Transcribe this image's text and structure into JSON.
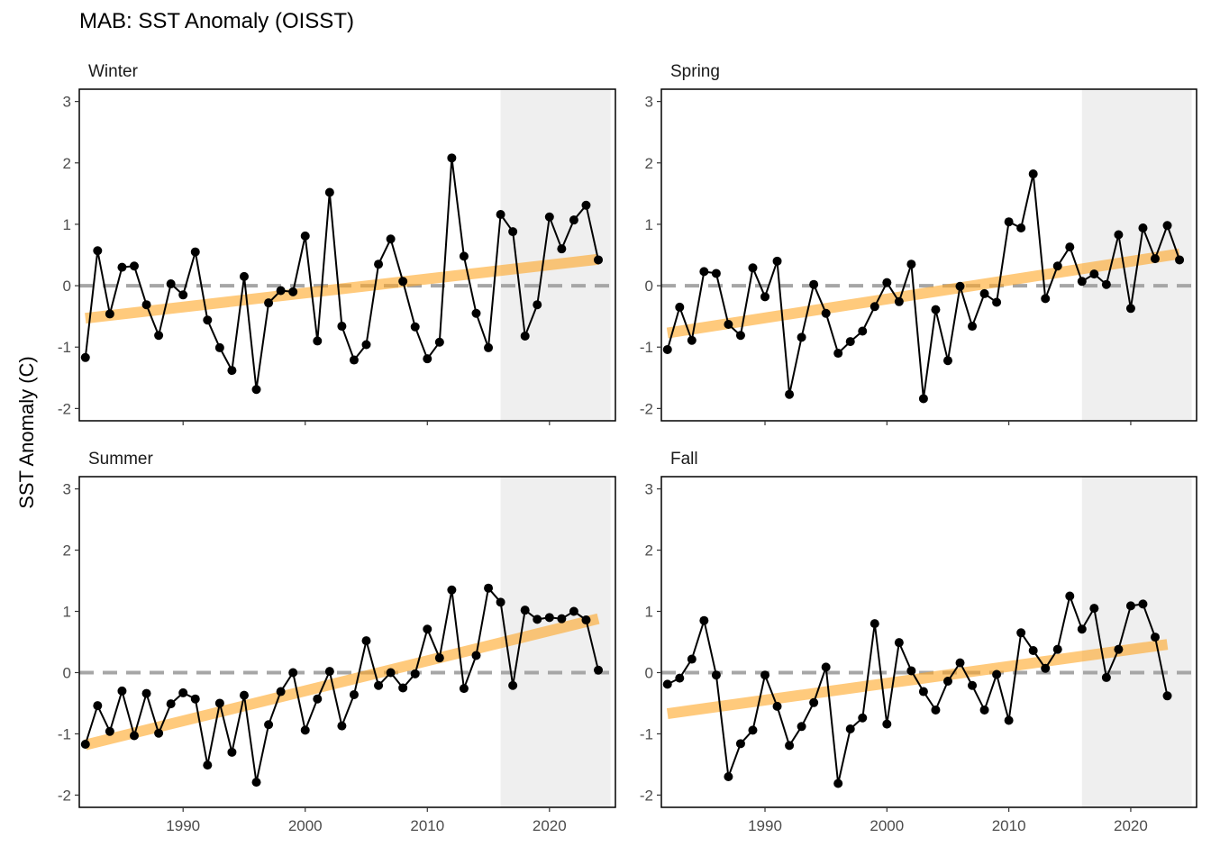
{
  "title": "MAB: SST Anomaly (OISST)",
  "ylabel": "SST Anomaly (C)",
  "colors": {
    "series": "#000000",
    "trend": "#FFA726",
    "zero_line": "#A6A6A6",
    "shade": "#EFEFEF",
    "panel_border": "#000000"
  },
  "chart_data": [
    {
      "type": "line",
      "facet": "Winter",
      "x": [
        1982,
        1983,
        1984,
        1985,
        1986,
        1987,
        1988,
        1989,
        1990,
        1991,
        1992,
        1993,
        1994,
        1995,
        1996,
        1997,
        1998,
        1999,
        2000,
        2001,
        2002,
        2003,
        2004,
        2005,
        2006,
        2007,
        2008,
        2009,
        2010,
        2011,
        2012,
        2013,
        2014,
        2015,
        2016,
        2017,
        2018,
        2019,
        2020,
        2021,
        2022,
        2023,
        2024
      ],
      "y": [
        -1.17,
        0.57,
        -0.46,
        0.3,
        0.32,
        -0.31,
        -0.81,
        0.03,
        -0.15,
        0.55,
        -0.56,
        -1.01,
        -1.38,
        0.15,
        -1.69,
        -0.28,
        -0.08,
        -0.1,
        0.81,
        -0.9,
        1.52,
        -0.66,
        -1.21,
        -0.96,
        0.35,
        0.76,
        0.07,
        -0.67,
        -1.19,
        -0.92,
        2.08,
        0.48,
        -0.45,
        -1.01,
        1.16,
        0.88,
        -0.82,
        -0.31,
        1.12,
        0.6,
        1.07,
        1.31,
        0.42
      ],
      "trend": {
        "x": [
          1982,
          2024
        ],
        "y": [
          -0.53,
          0.43
        ]
      },
      "shade": [
        2016,
        2025
      ],
      "xlim": [
        1981.5,
        2025.4
      ],
      "ylim": [
        -2.2,
        3.2
      ],
      "yticks": [
        -2,
        -1,
        0,
        1,
        2,
        3
      ],
      "xticks": [
        1990,
        2000,
        2010,
        2020
      ]
    },
    {
      "type": "line",
      "facet": "Spring",
      "x": [
        1982,
        1983,
        1984,
        1985,
        1986,
        1987,
        1988,
        1989,
        1990,
        1991,
        1992,
        1993,
        1994,
        1995,
        1996,
        1997,
        1998,
        1999,
        2000,
        2001,
        2002,
        2003,
        2004,
        2005,
        2006,
        2007,
        2008,
        2009,
        2010,
        2011,
        2012,
        2013,
        2014,
        2015,
        2016,
        2017,
        2018,
        2019,
        2020,
        2021,
        2022,
        2023,
        2024
      ],
      "y": [
        -1.04,
        -0.35,
        -0.89,
        0.23,
        0.2,
        -0.63,
        -0.81,
        0.29,
        -0.18,
        0.4,
        -1.77,
        -0.84,
        0.02,
        -0.45,
        -1.1,
        -0.91,
        -0.74,
        -0.34,
        0.05,
        -0.26,
        0.35,
        -1.84,
        -0.39,
        -1.22,
        -0.01,
        -0.66,
        -0.13,
        -0.27,
        1.04,
        0.94,
        1.82,
        -0.21,
        0.32,
        0.63,
        0.07,
        0.19,
        0.02,
        0.83,
        -0.37,
        0.94,
        0.44,
        0.98,
        0.42
      ],
      "trend": {
        "x": [
          1982,
          2024
        ],
        "y": [
          -0.77,
          0.52
        ]
      },
      "shade": [
        2016,
        2025
      ],
      "xlim": [
        1981.5,
        2025.4
      ],
      "ylim": [
        -2.2,
        3.2
      ],
      "yticks": [
        -2,
        -1,
        0,
        1,
        2,
        3
      ],
      "xticks": [
        1990,
        2000,
        2010,
        2020
      ]
    },
    {
      "type": "line",
      "facet": "Summer",
      "x": [
        1982,
        1983,
        1984,
        1985,
        1986,
        1987,
        1988,
        1989,
        1990,
        1991,
        1992,
        1993,
        1994,
        1995,
        1996,
        1997,
        1998,
        1999,
        2000,
        2001,
        2002,
        2003,
        2004,
        2005,
        2006,
        2007,
        2008,
        2009,
        2010,
        2011,
        2012,
        2013,
        2014,
        2015,
        2016,
        2017,
        2018,
        2019,
        2020,
        2021,
        2022,
        2023,
        2024
      ],
      "y": [
        -1.17,
        -0.54,
        -0.96,
        -0.3,
        -1.03,
        -0.34,
        -0.99,
        -0.51,
        -0.33,
        -0.43,
        -1.51,
        -0.5,
        -1.3,
        -0.37,
        -1.79,
        -0.85,
        -0.31,
        0.0,
        -0.94,
        -0.43,
        0.02,
        -0.87,
        -0.36,
        0.52,
        -0.21,
        0.0,
        -0.25,
        -0.02,
        0.71,
        0.24,
        1.35,
        -0.26,
        0.28,
        1.38,
        1.15,
        -0.21,
        1.02,
        0.87,
        0.9,
        0.88,
        1.0,
        0.86,
        0.04
      ],
      "trend": {
        "x": [
          1982,
          2024
        ],
        "y": [
          -1.18,
          0.88
        ]
      },
      "shade": [
        2016,
        2025
      ],
      "xlim": [
        1981.5,
        2025.4
      ],
      "ylim": [
        -2.2,
        3.2
      ],
      "yticks": [
        -2,
        -1,
        0,
        1,
        2,
        3
      ],
      "xticks": [
        1990,
        2000,
        2010,
        2020
      ]
    },
    {
      "type": "line",
      "facet": "Fall",
      "x": [
        1982,
        1983,
        1984,
        1985,
        1986,
        1987,
        1988,
        1989,
        1990,
        1991,
        1992,
        1993,
        1994,
        1995,
        1996,
        1997,
        1998,
        1999,
        2000,
        2001,
        2002,
        2003,
        2004,
        2005,
        2006,
        2007,
        2008,
        2009,
        2010,
        2011,
        2012,
        2013,
        2014,
        2015,
        2016,
        2017,
        2018,
        2019,
        2020,
        2021,
        2022,
        2023
      ],
      "y": [
        -0.19,
        -0.09,
        0.22,
        0.85,
        -0.04,
        -1.7,
        -1.16,
        -0.94,
        -0.04,
        -0.55,
        -1.19,
        -0.88,
        -0.49,
        0.09,
        -1.81,
        -0.92,
        -0.74,
        0.8,
        -0.84,
        0.49,
        0.03,
        -0.31,
        -0.61,
        -0.14,
        0.16,
        -0.21,
        -0.61,
        -0.03,
        -0.78,
        0.65,
        0.36,
        0.07,
        0.38,
        1.25,
        0.71,
        1.05,
        -0.08,
        0.38,
        1.09,
        1.12,
        0.58,
        -0.38
      ],
      "trend": {
        "x": [
          1982,
          2023
        ],
        "y": [
          -0.67,
          0.46
        ]
      },
      "shade": [
        2016,
        2025
      ],
      "xlim": [
        1981.5,
        2025.4
      ],
      "ylim": [
        -2.2,
        3.2
      ],
      "yticks": [
        -2,
        -1,
        0,
        1,
        2,
        3
      ],
      "xticks": [
        1990,
        2000,
        2010,
        2020
      ]
    }
  ]
}
